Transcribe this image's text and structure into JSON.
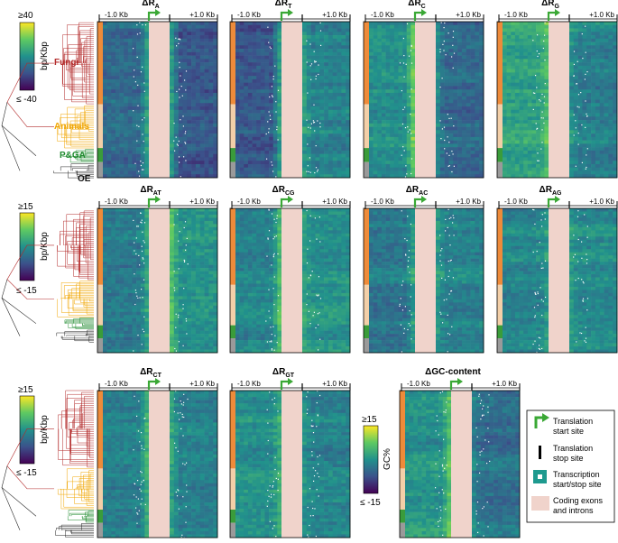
{
  "colors": {
    "fungi": "#b32b2b",
    "animals": "#f0a500",
    "plants": "#1f8a2e",
    "other": "#222222",
    "exon": "#f0d3cb",
    "start_arrow": "#3aa835",
    "tss_square": "#1e9a8f",
    "strip_fungi": "#ee8b3a",
    "strip_animals": "#f3cfa8",
    "strip_plants": "#3a9c3a",
    "strip_other": "#9a9a9a"
  },
  "colormap": [
    "#440154",
    "#3b528b",
    "#21918c",
    "#5ec962",
    "#fde725"
  ],
  "tree_labels": {
    "fungi": "Fungi",
    "animals": "Animals",
    "plants": "P&GA",
    "other": "OE"
  },
  "colorbars": [
    {
      "top": "≥40",
      "bottom": "≤ -40",
      "label": "bp/Kbp"
    },
    {
      "top": "≥15",
      "bottom": "≤ -15",
      "label": "bp/Kbp"
    },
    {
      "top": "≥15",
      "bottom": "≤ -15",
      "label": "bp/Kbp"
    },
    {
      "top": "≥15",
      "bottom": "≤ -15",
      "label": "GC%"
    }
  ],
  "axis": {
    "left": "-1.0 Kb",
    "right": "+1.0 Kb"
  },
  "panels": [
    {
      "title": "ΔR",
      "sub": "A"
    },
    {
      "title": "ΔR",
      "sub": "T"
    },
    {
      "title": "ΔR",
      "sub": "C"
    },
    {
      "title": "ΔR",
      "sub": "G"
    },
    {
      "title": "ΔR",
      "sub": "AT"
    },
    {
      "title": "ΔR",
      "sub": "CG"
    },
    {
      "title": "ΔR",
      "sub": "AC"
    },
    {
      "title": "ΔR",
      "sub": "AG"
    },
    {
      "title": "ΔR",
      "sub": "CT"
    },
    {
      "title": "ΔR",
      "sub": "GT"
    },
    {
      "title": "ΔGC-content",
      "sub": ""
    }
  ],
  "legend": [
    {
      "icon": "arrow",
      "label1": "Translation",
      "label2": "start site"
    },
    {
      "icon": "bar",
      "label1": "Translation",
      "label2": "stop site"
    },
    {
      "icon": "square",
      "label1": "Transcription",
      "label2": "start/stop site"
    },
    {
      "icon": "rect",
      "label1": "Coding exons",
      "label2": "and introns"
    }
  ]
}
